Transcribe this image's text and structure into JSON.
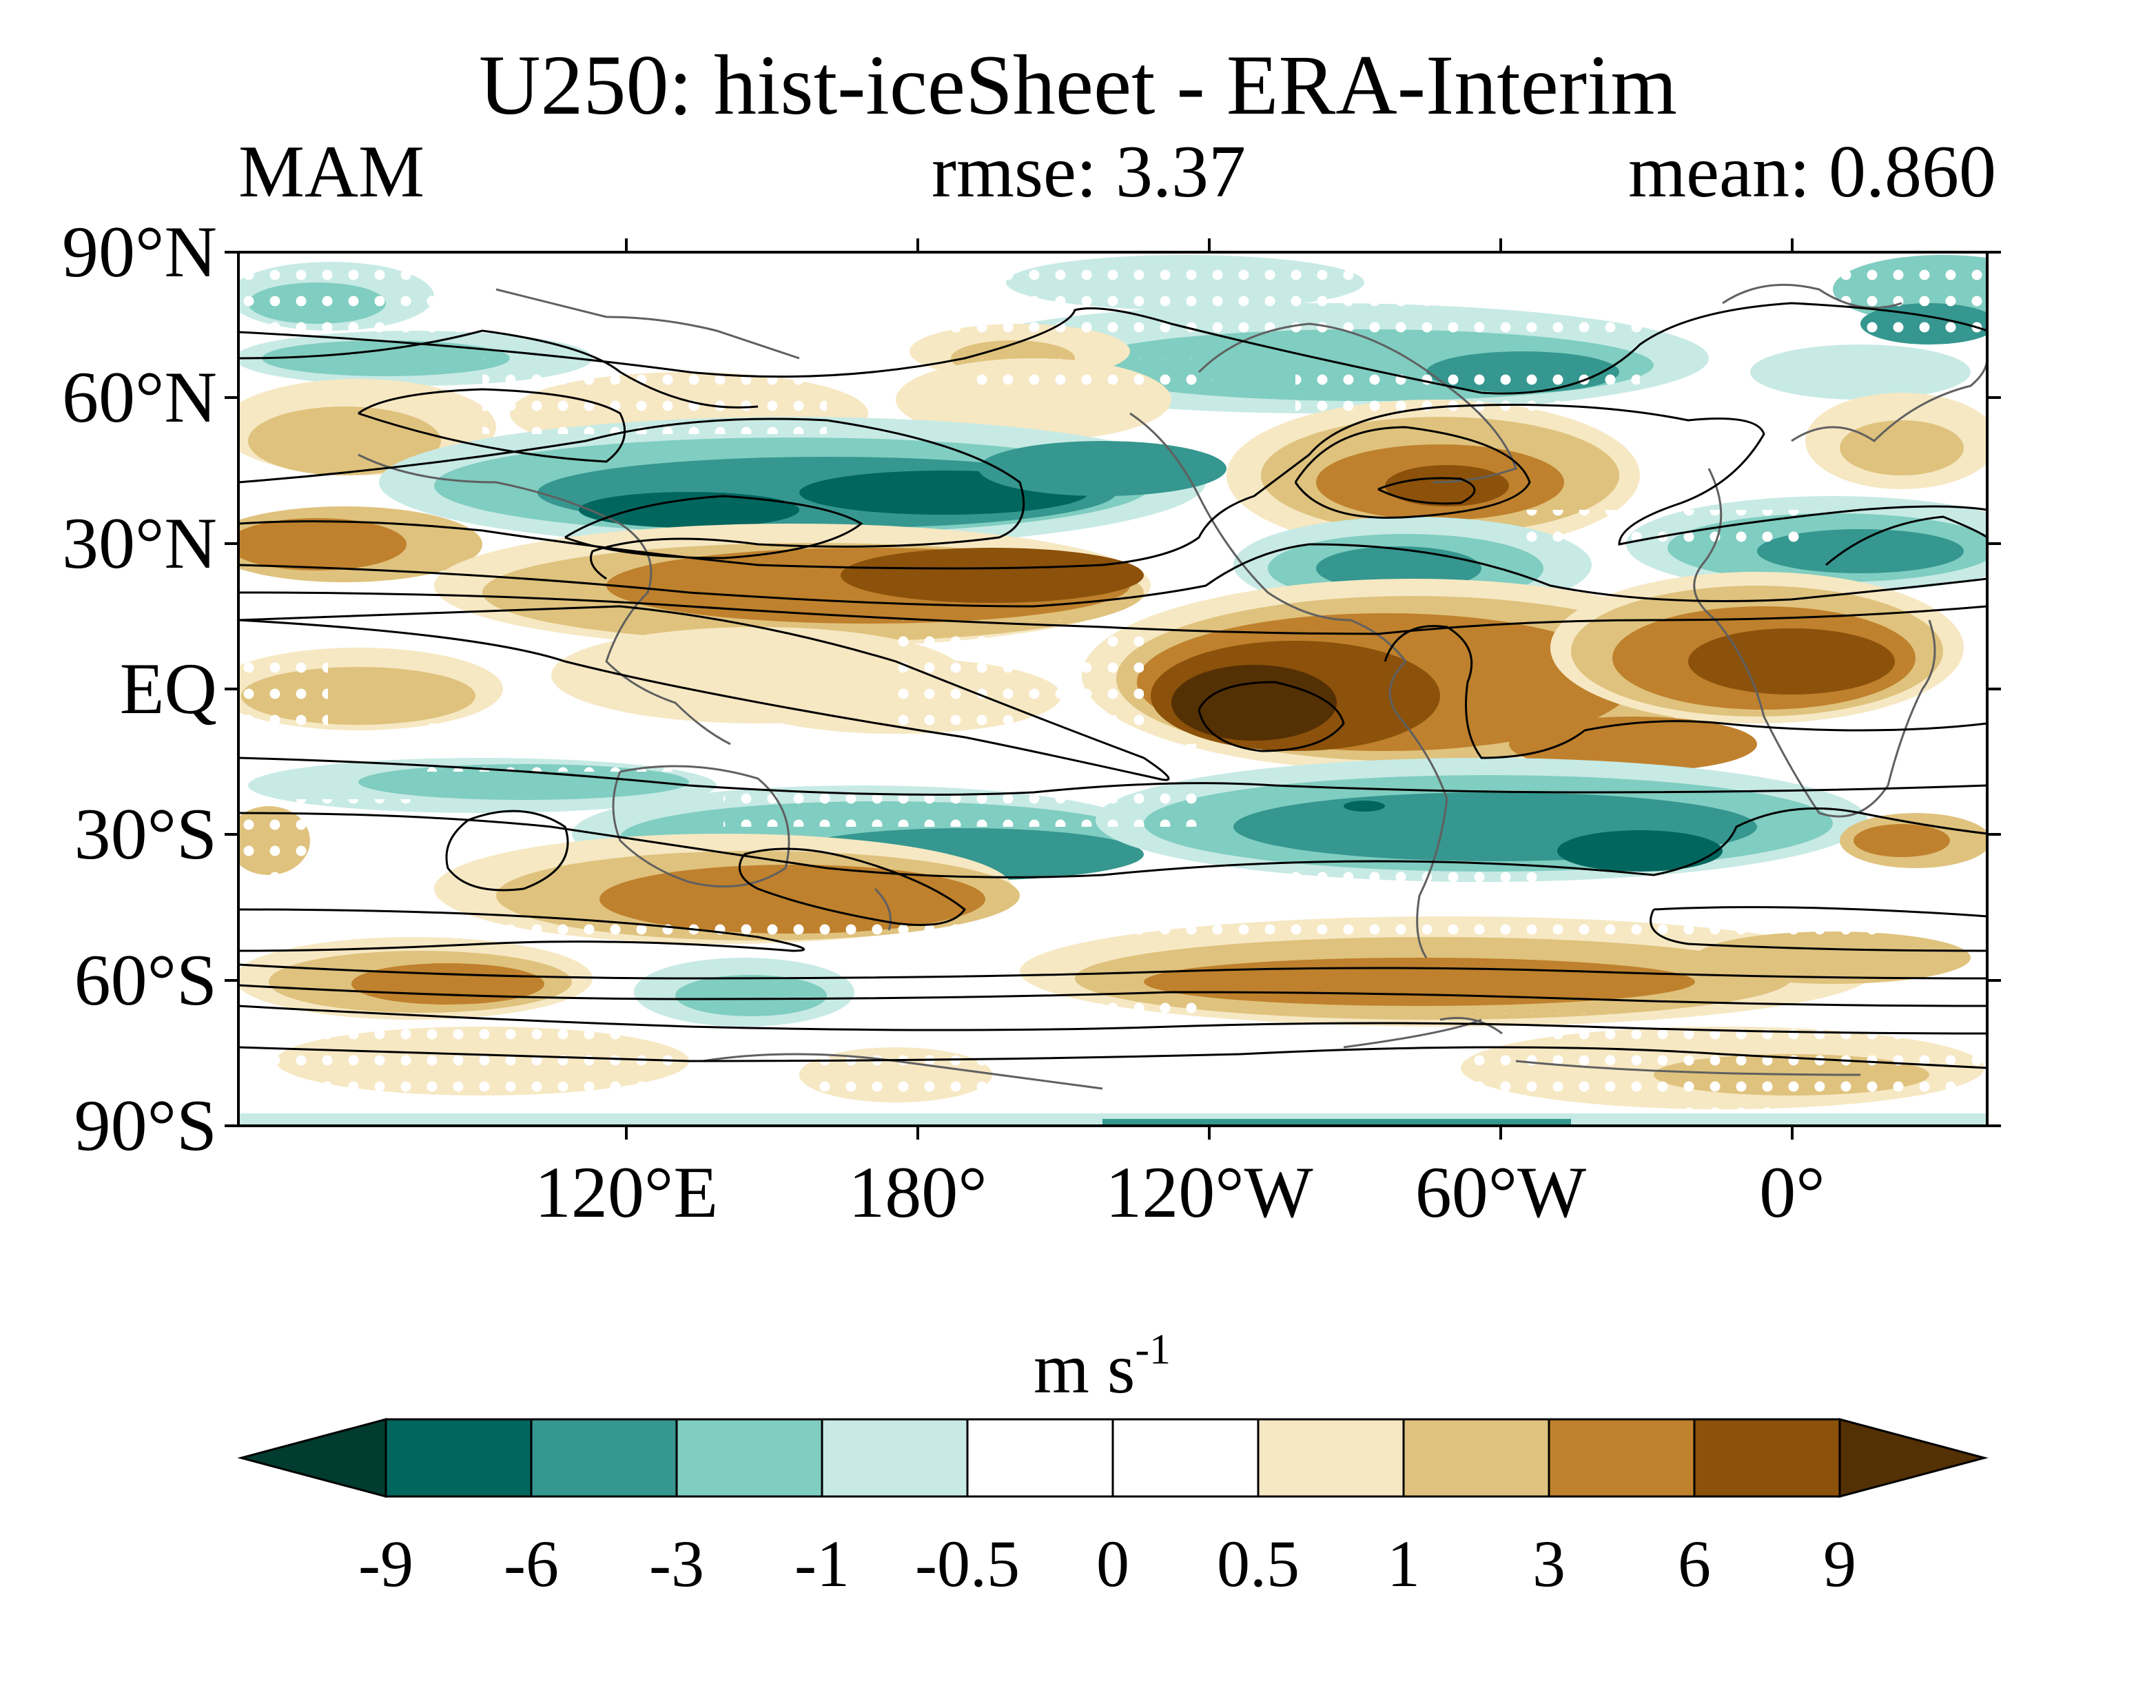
{
  "title": "U250: hist-iceSheet - ERA-Interim",
  "season": "MAM",
  "rmse_label": "rmse: 3.37",
  "mean_label": "mean: 0.860",
  "lat_labels": [
    "90°N",
    "60°N",
    "30°N",
    "EQ",
    "30°S",
    "60°S",
    "90°S"
  ],
  "lon_labels": [
    "120°E",
    "180°",
    "120°W",
    "60°W",
    "0°"
  ],
  "colorbar": {
    "units": "m s",
    "units_exponent": "-1",
    "tick_labels": [
      "-9",
      "-6",
      "-3",
      "-1",
      "-0.5",
      "0",
      "0.5",
      "1",
      "3",
      "6",
      "9"
    ],
    "colors": [
      "#003c30",
      "#01665e",
      "#35978f",
      "#80cdc1",
      "#c7eae5",
      "#ffffff",
      "#ffffff",
      "#f6e8c3",
      "#dfc27d",
      "#bf812d",
      "#8c510a",
      "#543005"
    ]
  },
  "map": {
    "projection": "cylindrical equidistant",
    "lon_range": [
      40,
      400
    ],
    "lat_range": [
      -90,
      90
    ],
    "stippling": "white dots mark statistically significant differences",
    "contours": "black lines show the reference climatological zonal wind"
  }
}
